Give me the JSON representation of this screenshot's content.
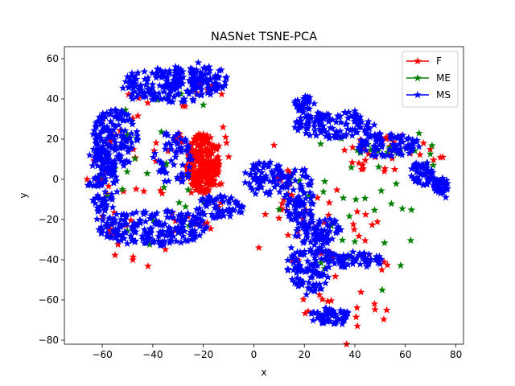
{
  "chart_data": {
    "type": "scatter",
    "title": "NASNet TSNE-PCA",
    "xlabel": "x",
    "ylabel": "y",
    "xlim": [
      -75,
      83
    ],
    "ylim": [
      -82,
      66
    ],
    "xticks": [
      -60,
      -40,
      -20,
      0,
      20,
      40,
      60,
      80
    ],
    "yticks": [
      -80,
      -60,
      -40,
      -20,
      0,
      20,
      40,
      60
    ],
    "grid": false,
    "legend_position": "top-right",
    "marker": "star",
    "series": [
      {
        "name": "F",
        "color": "#ff0000",
        "regions": [
          {
            "cx": -20,
            "cy": 8,
            "rx": 7,
            "ry": 15,
            "n": 260
          },
          {
            "cx": -20,
            "cy": 15,
            "rx": 11,
            "ry": 42,
            "n": 40
          },
          {
            "cx": -45,
            "cy": 0,
            "rx": 20,
            "ry": 45,
            "n": 45
          },
          {
            "cx": 35,
            "cy": -45,
            "rx": 22,
            "ry": 40,
            "n": 40
          },
          {
            "cx": 55,
            "cy": 12,
            "rx": 20,
            "ry": 10,
            "n": 30
          },
          {
            "cx": 12,
            "cy": -15,
            "rx": 8,
            "ry": 20,
            "n": 20
          }
        ],
        "points": [
          [
            40.5,
            -68.5
          ],
          [
            -34,
            14
          ],
          [
            -66,
            0
          ],
          [
            8,
            17
          ],
          [
            -42,
            38
          ],
          [
            62,
            13
          ],
          [
            2,
            -34
          ],
          [
            68,
            3
          ],
          [
            41,
            -73
          ],
          [
            -29,
            21
          ]
        ]
      },
      {
        "name": "ME",
        "color": "#008000",
        "regions": [
          {
            "cx": -40,
            "cy": 5,
            "rx": 22,
            "ry": 45,
            "n": 30
          },
          {
            "cx": 38,
            "cy": -20,
            "rx": 28,
            "ry": 45,
            "n": 30
          },
          {
            "cx": 58,
            "cy": 14,
            "rx": 18,
            "ry": 10,
            "n": 18
          }
        ],
        "points": [
          [
            40,
            -31
          ],
          [
            71,
            7
          ],
          [
            -20,
            37
          ],
          [
            10,
            -15
          ],
          [
            30,
            -65
          ],
          [
            -52,
            -5
          ]
        ]
      },
      {
        "name": "MS",
        "color": "#0000ff",
        "regions": [
          {
            "cx": -33,
            "cy": 47,
            "rx": 20,
            "ry": 9,
            "n": 180
          },
          {
            "cx": -55,
            "cy": 20,
            "rx": 9,
            "ry": 15,
            "n": 150
          },
          {
            "cx": -60,
            "cy": -3,
            "rx": 6,
            "ry": 18,
            "n": 100
          },
          {
            "cx": -40,
            "cy": -24,
            "rx": 22,
            "ry": 9,
            "n": 200
          },
          {
            "cx": -14,
            "cy": -14,
            "rx": 10,
            "ry": 6,
            "n": 60
          },
          {
            "cx": -32,
            "cy": 10,
            "rx": 8,
            "ry": 14,
            "n": 60
          },
          {
            "cx": 5,
            "cy": 0,
            "rx": 9,
            "ry": 9,
            "n": 80
          },
          {
            "cx": 18,
            "cy": -10,
            "rx": 6,
            "ry": 16,
            "n": 90
          },
          {
            "cx": 22,
            "cy": -40,
            "rx": 9,
            "ry": 18,
            "n": 130
          },
          {
            "cx": 30,
            "cy": -68,
            "rx": 8,
            "ry": 4,
            "n": 60
          },
          {
            "cx": 40,
            "cy": -40,
            "rx": 12,
            "ry": 4,
            "n": 60
          },
          {
            "cx": 27,
            "cy": -25,
            "rx": 8,
            "ry": 6,
            "n": 50
          },
          {
            "cx": 32,
            "cy": 27,
            "rx": 16,
            "ry": 7,
            "n": 120
          },
          {
            "cx": 20,
            "cy": 38,
            "rx": 4,
            "ry": 5,
            "n": 30
          },
          {
            "cx": 53,
            "cy": 17,
            "rx": 13,
            "ry": 6,
            "n": 90
          },
          {
            "cx": 67,
            "cy": 3,
            "rx": 5,
            "ry": 6,
            "n": 50
          },
          {
            "cx": 74,
            "cy": -3,
            "rx": 3,
            "ry": 4,
            "n": 40
          },
          {
            "cx": -18,
            "cy": 50,
            "rx": 8,
            "ry": 7,
            "n": 50
          }
        ],
        "points": [
          [
            76,
            -9
          ],
          [
            -65,
            12
          ],
          [
            40,
            34
          ],
          [
            -22,
            58
          ],
          [
            -48,
            40
          ],
          [
            35,
            -72
          ]
        ]
      }
    ]
  }
}
